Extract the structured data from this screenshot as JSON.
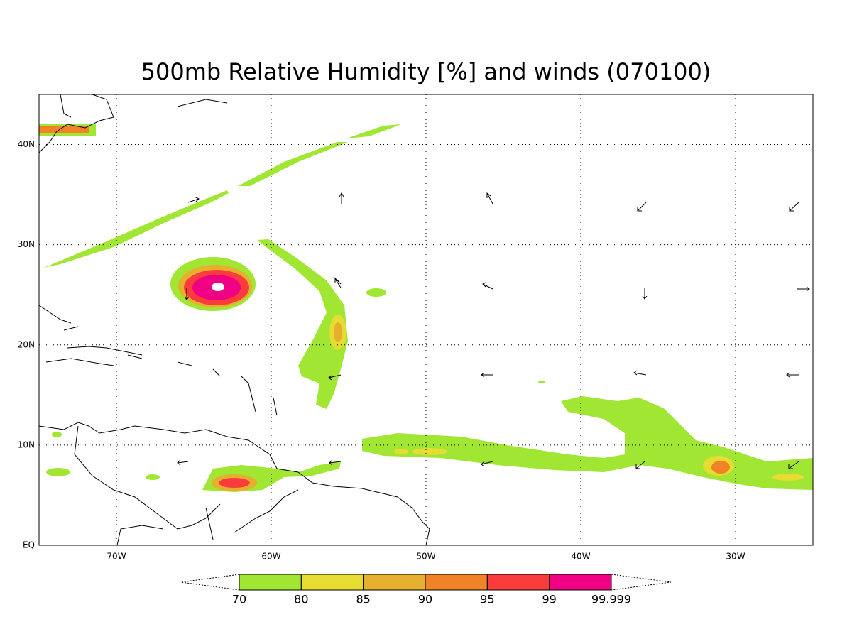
{
  "map": {
    "title": "500mb Relative Humidity [%] and winds (070100)",
    "lon_range": [
      -75,
      -25
    ],
    "lat_range": [
      0,
      45
    ],
    "lon_ticks": [
      {
        "value": -70,
        "label": "70W"
      },
      {
        "value": -60,
        "label": "60W"
      },
      {
        "value": -50,
        "label": "50W"
      },
      {
        "value": -40,
        "label": "40W"
      },
      {
        "value": -30,
        "label": "30W"
      }
    ],
    "lat_ticks": [
      {
        "value": 0,
        "label": "EQ"
      },
      {
        "value": 10,
        "label": "10N"
      },
      {
        "value": 20,
        "label": "20N"
      },
      {
        "value": 30,
        "label": "30N"
      },
      {
        "value": 40,
        "label": "40N"
      }
    ],
    "colorbar": {
      "levels": [
        70,
        80,
        85,
        90,
        95,
        99,
        99.999
      ],
      "colors": [
        "#a0e632",
        "#e6dc32",
        "#e6af2d",
        "#f08228",
        "#fa3c3c",
        "#f00082"
      ]
    }
  }
}
